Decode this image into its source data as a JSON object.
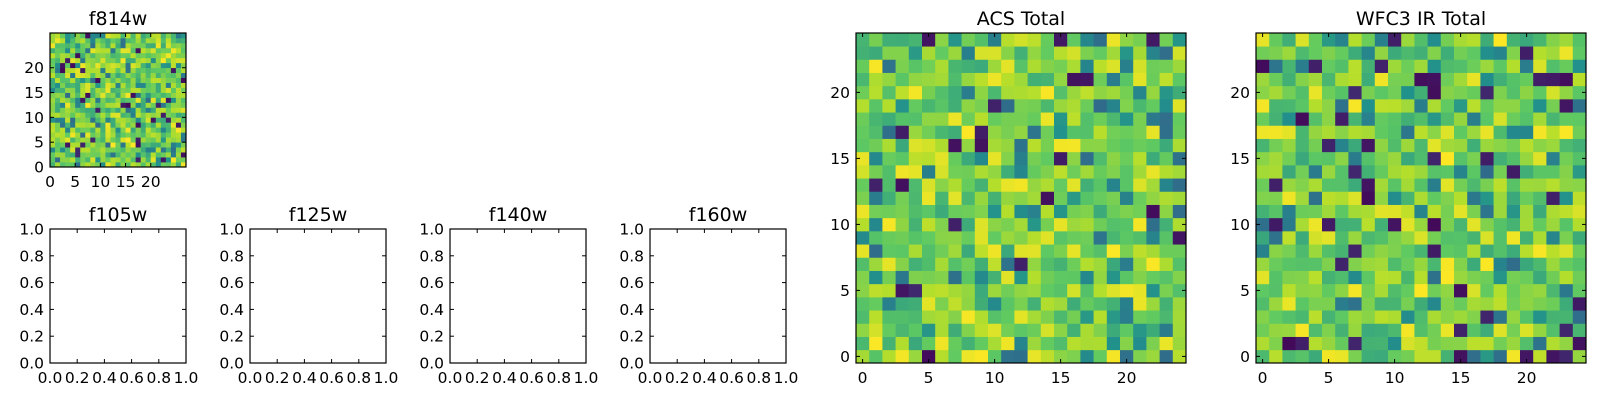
{
  "chart_data": [
    {
      "type": "heatmap",
      "title": "f814w",
      "grid_size": 27,
      "seed": 814,
      "colormap": "viridis",
      "xticks": [
        0,
        5,
        10,
        15,
        20
      ],
      "yticks": [
        0,
        5,
        10,
        15,
        20
      ],
      "xlim": [
        0,
        27
      ],
      "ylim": [
        0,
        27
      ]
    },
    {
      "type": "empty",
      "title": "f105w",
      "xticks": [
        "0.0",
        "0.2",
        "0.4",
        "0.6",
        "0.8",
        "1.0"
      ],
      "yticks": [
        "0.0",
        "0.2",
        "0.4",
        "0.6",
        "0.8",
        "1.0"
      ],
      "xlim": [
        0,
        1
      ],
      "ylim": [
        0,
        1
      ]
    },
    {
      "type": "empty",
      "title": "f125w",
      "xticks": [
        "0.0",
        "0.2",
        "0.4",
        "0.6",
        "0.8",
        "1.0"
      ],
      "yticks": [
        "0.0",
        "0.2",
        "0.4",
        "0.6",
        "0.8",
        "1.0"
      ],
      "xlim": [
        0,
        1
      ],
      "ylim": [
        0,
        1
      ]
    },
    {
      "type": "empty",
      "title": "f140w",
      "xticks": [
        "0.0",
        "0.2",
        "0.4",
        "0.6",
        "0.8",
        "1.0"
      ],
      "yticks": [
        "0.0",
        "0.2",
        "0.4",
        "0.6",
        "0.8",
        "1.0"
      ],
      "xlim": [
        0,
        1
      ],
      "ylim": [
        0,
        1
      ]
    },
    {
      "type": "empty",
      "title": "f160w",
      "xticks": [
        "0.0",
        "0.2",
        "0.4",
        "0.6",
        "0.8",
        "1.0"
      ],
      "yticks": [
        "0.0",
        "0.2",
        "0.4",
        "0.6",
        "0.8",
        "1.0"
      ],
      "xlim": [
        0,
        1
      ],
      "ylim": [
        0,
        1
      ]
    },
    {
      "type": "heatmap",
      "title": "ACS Total",
      "grid_size": 25,
      "seed": 2718,
      "colormap": "viridis",
      "xticks": [
        0,
        5,
        10,
        15,
        20
      ],
      "yticks": [
        0,
        5,
        10,
        15,
        20
      ],
      "xlim": [
        -0.5,
        24.5
      ],
      "ylim": [
        -0.5,
        24.5
      ]
    },
    {
      "type": "heatmap",
      "title": "WFC3 IR Total",
      "grid_size": 25,
      "seed": 3141,
      "colormap": "viridis",
      "xticks": [
        0,
        5,
        10,
        15,
        20
      ],
      "yticks": [
        0,
        5,
        10,
        15,
        20
      ],
      "xlim": [
        -0.5,
        24.5
      ],
      "ylim": [
        -0.5,
        24.5
      ]
    }
  ]
}
